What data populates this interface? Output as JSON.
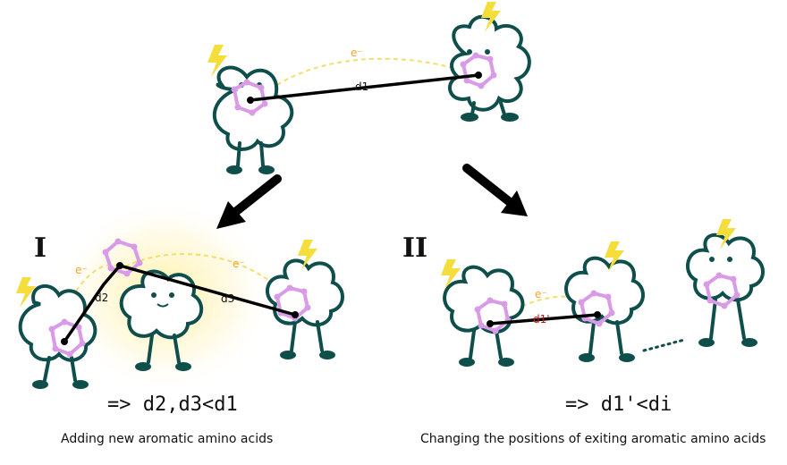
{
  "top": {
    "distance_label": "d1",
    "electron": "e⁻"
  },
  "panel_I": {
    "numeral": "I",
    "distance_labels": [
      "d2",
      "d3"
    ],
    "electrons": [
      "e⁻",
      "e⁻"
    ],
    "result": "=> d2,d3<d1",
    "caption": "Adding new aromatic amino acids"
  },
  "panel_II": {
    "numeral": "II",
    "distance_label": "d1'",
    "electron": "e⁻",
    "result": "=> d1'<di",
    "caption": "Changing the positions of exiting aromatic amino acids"
  },
  "colors": {
    "outline": "#0f4f4b",
    "ring": "#d99be8",
    "bolt": "#f5dd3c",
    "path": "#f2df6b",
    "electron": "#f0a62c",
    "bond": "#000000",
    "new_distance": "#cc1111",
    "glow": "#fff3b0"
  }
}
